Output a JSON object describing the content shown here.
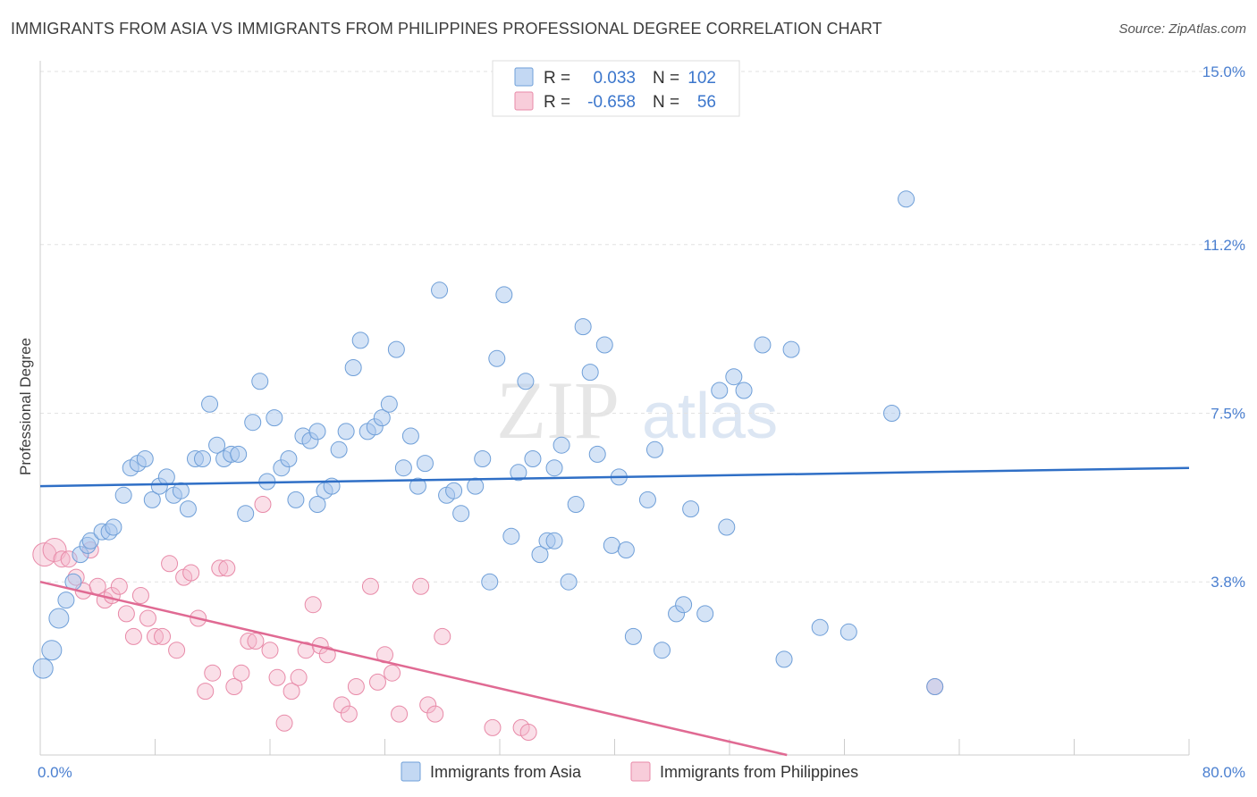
{
  "header": {
    "title": "IMMIGRANTS FROM ASIA VS IMMIGRANTS FROM PHILIPPINES PROFESSIONAL DEGREE CORRELATION CHART",
    "source": "Source: ZipAtlas.com"
  },
  "watermark": {
    "zip": "ZIP",
    "atlas": "atlas"
  },
  "colors": {
    "asia_fill": "#a9c8ee",
    "asia_stroke": "#6f9fd8",
    "asia_line": "#2f6fc6",
    "phil_fill": "#f5b8cb",
    "phil_stroke": "#e88aa8",
    "phil_line": "#e06a93",
    "tick_color": "#4a7fd0"
  },
  "legend": {
    "rows": [
      {
        "r_label": "R =",
        "r_value": "0.033",
        "n_label": "N =",
        "n_value": "102"
      },
      {
        "r_label": "R =",
        "r_value": "-0.658",
        "n_label": "N =",
        "n_value": "56"
      }
    ]
  },
  "chart_data": {
    "type": "scatter",
    "ylabel": "Professional Degree",
    "xlim": [
      0,
      80
    ],
    "ylim": [
      0,
      15
    ],
    "x_tick_labels": [
      "0.0%",
      "80.0%"
    ],
    "y_ticks": [
      3.8,
      7.5,
      11.2,
      15.0
    ],
    "y_tick_labels": [
      "3.8%",
      "7.5%",
      "11.2%",
      "15.0%"
    ],
    "grid": true,
    "legend_position": "top-center",
    "series": [
      {
        "name": "Immigrants from Asia",
        "trend": {
          "x": [
            0,
            80
          ],
          "y": [
            5.9,
            6.3
          ]
        },
        "points": [
          [
            0.2,
            1.9
          ],
          [
            0.8,
            2.3
          ],
          [
            1.3,
            3.0
          ],
          [
            1.8,
            3.4
          ],
          [
            2.3,
            3.8
          ],
          [
            2.8,
            4.4
          ],
          [
            3.3,
            4.6
          ],
          [
            3.5,
            4.7
          ],
          [
            4.3,
            4.9
          ],
          [
            4.8,
            4.9
          ],
          [
            5.1,
            5.0
          ],
          [
            5.8,
            5.7
          ],
          [
            6.3,
            6.3
          ],
          [
            6.8,
            6.4
          ],
          [
            7.3,
            6.5
          ],
          [
            7.8,
            5.6
          ],
          [
            8.3,
            5.9
          ],
          [
            8.8,
            6.1
          ],
          [
            9.3,
            5.7
          ],
          [
            9.8,
            5.8
          ],
          [
            10.3,
            5.4
          ],
          [
            10.8,
            6.5
          ],
          [
            11.3,
            6.5
          ],
          [
            11.8,
            7.7
          ],
          [
            12.3,
            6.8
          ],
          [
            12.8,
            6.5
          ],
          [
            13.3,
            6.6
          ],
          [
            13.8,
            6.6
          ],
          [
            14.3,
            5.3
          ],
          [
            14.8,
            7.3
          ],
          [
            15.3,
            8.2
          ],
          [
            15.8,
            6.0
          ],
          [
            16.3,
            7.4
          ],
          [
            16.8,
            6.3
          ],
          [
            17.3,
            6.5
          ],
          [
            17.8,
            5.6
          ],
          [
            18.3,
            7.0
          ],
          [
            18.8,
            6.9
          ],
          [
            19.3,
            7.1
          ],
          [
            19.8,
            5.8
          ],
          [
            20.3,
            5.9
          ],
          [
            20.8,
            6.7
          ],
          [
            21.3,
            7.1
          ],
          [
            21.8,
            8.5
          ],
          [
            22.3,
            9.1
          ],
          [
            22.8,
            7.1
          ],
          [
            23.3,
            7.2
          ],
          [
            23.8,
            7.4
          ],
          [
            24.3,
            7.7
          ],
          [
            24.8,
            8.9
          ],
          [
            25.3,
            6.3
          ],
          [
            25.8,
            7.0
          ],
          [
            26.3,
            5.9
          ],
          [
            26.8,
            6.4
          ],
          [
            27.8,
            10.2
          ],
          [
            28.3,
            5.7
          ],
          [
            28.8,
            5.8
          ],
          [
            29.3,
            5.3
          ],
          [
            30.3,
            5.9
          ],
          [
            30.8,
            6.5
          ],
          [
            31.3,
            3.8
          ],
          [
            31.8,
            8.7
          ],
          [
            32.3,
            10.1
          ],
          [
            32.8,
            4.8
          ],
          [
            33.3,
            6.2
          ],
          [
            33.8,
            8.2
          ],
          [
            34.3,
            6.5
          ],
          [
            34.8,
            4.4
          ],
          [
            35.3,
            4.7
          ],
          [
            35.8,
            4.7
          ],
          [
            36.3,
            6.8
          ],
          [
            36.8,
            3.8
          ],
          [
            37.3,
            5.5
          ],
          [
            37.8,
            9.4
          ],
          [
            38.3,
            8.4
          ],
          [
            38.8,
            6.6
          ],
          [
            39.3,
            9.0
          ],
          [
            39.8,
            4.6
          ],
          [
            40.3,
            6.1
          ],
          [
            40.8,
            4.5
          ],
          [
            41.3,
            2.6
          ],
          [
            42.3,
            5.6
          ],
          [
            42.8,
            6.7
          ],
          [
            43.3,
            2.3
          ],
          [
            44.3,
            3.1
          ],
          [
            44.8,
            3.3
          ],
          [
            45.3,
            5.4
          ],
          [
            46.3,
            3.1
          ],
          [
            47.3,
            8.0
          ],
          [
            47.8,
            5.0
          ],
          [
            48.3,
            8.3
          ],
          [
            49.0,
            8.0
          ],
          [
            50.3,
            9.0
          ],
          [
            51.8,
            2.1
          ],
          [
            52.3,
            8.9
          ],
          [
            54.3,
            2.8
          ],
          [
            56.3,
            2.7
          ],
          [
            59.3,
            7.5
          ],
          [
            60.3,
            12.2
          ],
          [
            62.3,
            1.5
          ],
          [
            35.8,
            6.3
          ],
          [
            19.3,
            5.5
          ]
        ]
      },
      {
        "name": "Immigrants from Philippines",
        "trend": {
          "x": [
            0,
            52
          ],
          "y": [
            3.8,
            0
          ]
        },
        "points": [
          [
            0.3,
            4.4
          ],
          [
            1.0,
            4.5
          ],
          [
            1.5,
            4.3
          ],
          [
            2.0,
            4.3
          ],
          [
            2.5,
            3.9
          ],
          [
            3.0,
            3.6
          ],
          [
            3.5,
            4.5
          ],
          [
            4.0,
            3.7
          ],
          [
            4.5,
            3.4
          ],
          [
            5.0,
            3.5
          ],
          [
            5.5,
            3.7
          ],
          [
            6.0,
            3.1
          ],
          [
            6.5,
            2.6
          ],
          [
            7.0,
            3.5
          ],
          [
            7.5,
            3.0
          ],
          [
            8.0,
            2.6
          ],
          [
            8.5,
            2.6
          ],
          [
            9.0,
            4.2
          ],
          [
            9.5,
            2.3
          ],
          [
            10.0,
            3.9
          ],
          [
            10.5,
            4.0
          ],
          [
            11.0,
            3.0
          ],
          [
            11.5,
            1.4
          ],
          [
            12.0,
            1.8
          ],
          [
            12.5,
            4.1
          ],
          [
            13.0,
            4.1
          ],
          [
            13.5,
            1.5
          ],
          [
            14.0,
            1.8
          ],
          [
            14.5,
            2.5
          ],
          [
            15.0,
            2.5
          ],
          [
            15.5,
            5.5
          ],
          [
            16.0,
            2.3
          ],
          [
            16.5,
            1.7
          ],
          [
            17.0,
            0.7
          ],
          [
            17.5,
            1.4
          ],
          [
            18.0,
            1.7
          ],
          [
            18.5,
            2.3
          ],
          [
            19.0,
            3.3
          ],
          [
            19.5,
            2.4
          ],
          [
            20.0,
            2.2
          ],
          [
            21.0,
            1.1
          ],
          [
            21.5,
            0.9
          ],
          [
            22.0,
            1.5
          ],
          [
            23.0,
            3.7
          ],
          [
            23.5,
            1.6
          ],
          [
            24.0,
            2.2
          ],
          [
            24.5,
            1.8
          ],
          [
            25.0,
            0.9
          ],
          [
            26.5,
            3.7
          ],
          [
            27.0,
            1.1
          ],
          [
            27.5,
            0.9
          ],
          [
            28.0,
            2.6
          ],
          [
            31.5,
            0.6
          ],
          [
            33.5,
            0.6
          ],
          [
            34.0,
            0.5
          ],
          [
            62.3,
            1.5
          ]
        ]
      }
    ]
  },
  "bottom_legend": {
    "asia_label": "Immigrants from Asia",
    "phil_label": "Immigrants from Philippines"
  }
}
